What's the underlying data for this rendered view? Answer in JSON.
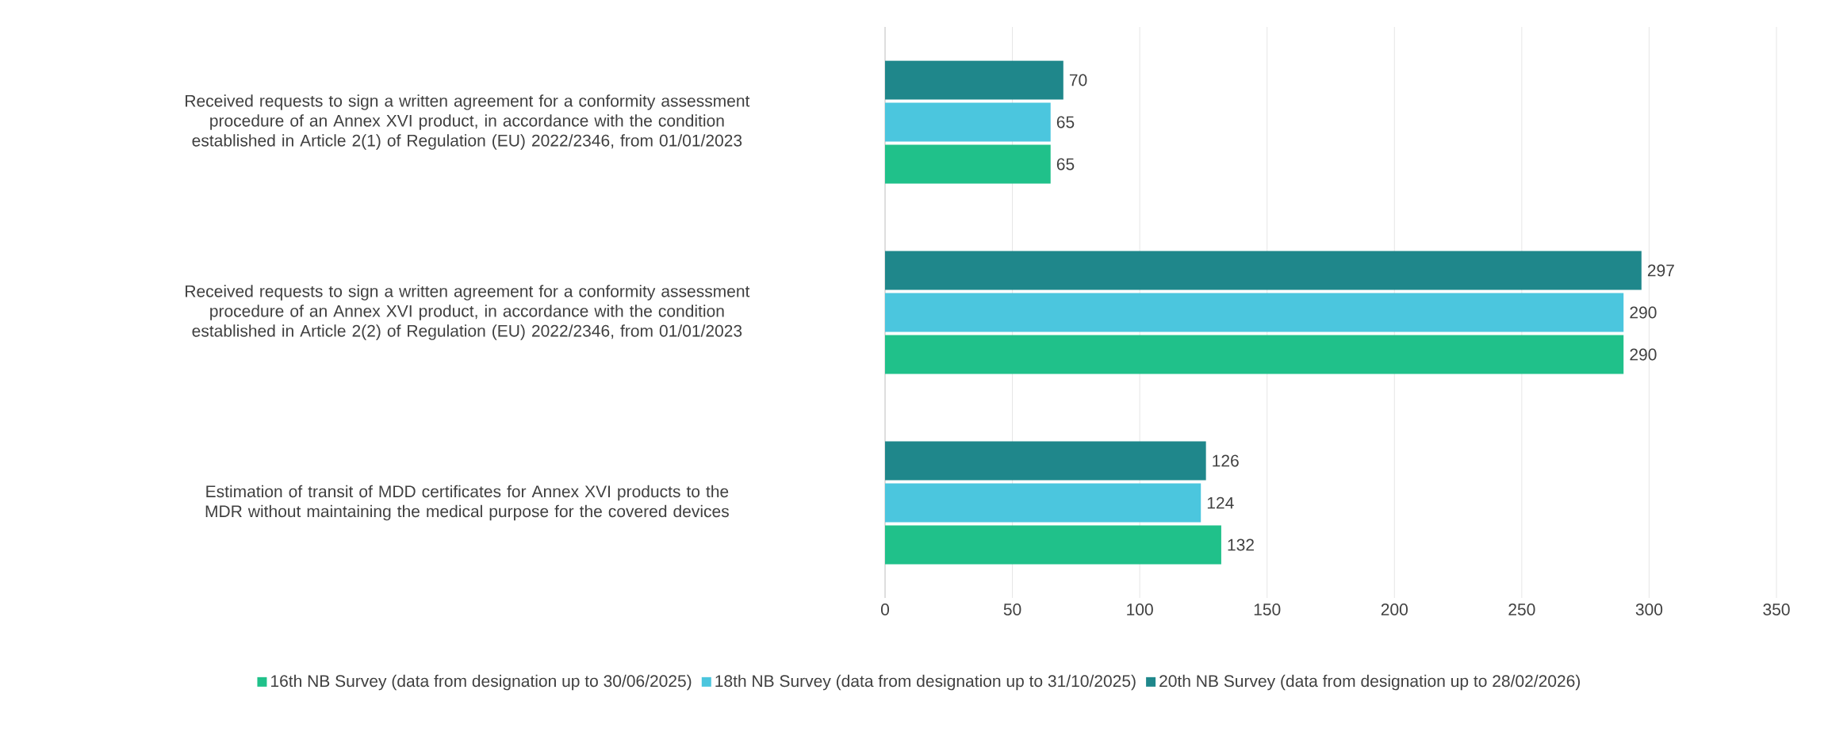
{
  "chart_data": {
    "type": "bar",
    "orientation": "horizontal",
    "categories": [
      "Received requests to sign a written agreement for a conformity assessment procedure of an Annex XVI product, in accordance with the condition established in Article 2(1) of Regulation (EU) 2022/2346, from 01/01/2023",
      "Received requests to sign a written agreement for a conformity assessment procedure of an Annex XVI product, in accordance with the condition established in Article 2(2) of Regulation (EU) 2022/2346, from 01/01/2023",
      "Estimation of transit of MDD certificates for Annex XVI products to the MDR without maintaining the medical purpose for the covered devices"
    ],
    "series": [
      {
        "name": "16th NB Survey (data from designation up to 30/06/2025)",
        "color": "#20c18a",
        "values": [
          65,
          290,
          132
        ]
      },
      {
        "name": "18th NB Survey (data from designation up to 31/10/2025)",
        "color": "#4bc6de",
        "values": [
          65,
          290,
          124
        ]
      },
      {
        "name": "20th NB Survey (data from designation up to 28/02/2026)",
        "color": "#1f878b",
        "values": [
          70,
          297,
          126
        ]
      }
    ],
    "xlim": [
      0,
      350
    ],
    "xticks": [
      0,
      50,
      100,
      150,
      200,
      250,
      300,
      350
    ],
    "grid": "x",
    "legend": "bottom",
    "data_labels": true
  }
}
